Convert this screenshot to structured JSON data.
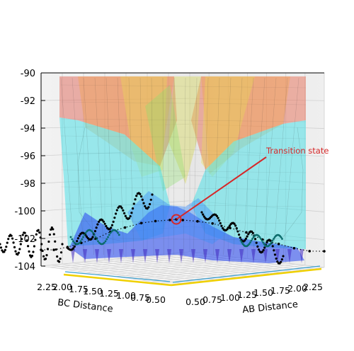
{
  "chart_data": {
    "type": "surface3d",
    "title": "",
    "zlim": [
      -104,
      -90
    ],
    "z_ticks": [
      "-90",
      "-92",
      "-94",
      "-96",
      "-98",
      "-100",
      "-102",
      "-104"
    ],
    "xlabel": "AB Distance",
    "ylabel": "BC Distance",
    "x_ticks": [
      "0.50",
      "0.75",
      "1.00",
      "1.25",
      "1.50",
      "1.75",
      "2.00",
      "2.25"
    ],
    "y_ticks": [
      "0.50",
      "0.75",
      "1.00",
      "1.25",
      "1.50",
      "1.75",
      "2.00",
      "2.25"
    ],
    "colormap": "jet",
    "surface_alpha": 0.45,
    "grid": true,
    "series": [
      {
        "kind": "reaction-path",
        "color": "#000000",
        "points": [
          {
            "ab": 0.5,
            "bc": 2.25,
            "z": -102.8
          },
          {
            "ab": 0.52,
            "bc": 2.1,
            "z": -102.7
          },
          {
            "ab": 0.55,
            "bc": 1.95,
            "z": -102.4
          },
          {
            "ab": 0.58,
            "bc": 1.8,
            "z": -102.0
          },
          {
            "ab": 0.62,
            "bc": 1.65,
            "z": -101.6
          },
          {
            "ab": 0.66,
            "bc": 1.5,
            "z": -101.0
          },
          {
            "ab": 0.7,
            "bc": 1.35,
            "z": -100.6
          },
          {
            "ab": 0.76,
            "bc": 1.2,
            "z": -100.2
          },
          {
            "ab": 0.82,
            "bc": 1.08,
            "z": -100.0
          },
          {
            "ab": 0.9,
            "bc": 0.98,
            "z": -99.9
          },
          {
            "ab": 0.94,
            "bc": 0.94,
            "z": -99.85
          },
          {
            "ab": 0.98,
            "bc": 0.9,
            "z": -99.9
          },
          {
            "ab": 1.08,
            "bc": 0.82,
            "z": -100.0
          },
          {
            "ab": 1.2,
            "bc": 0.76,
            "z": -100.2
          },
          {
            "ab": 1.35,
            "bc": 0.7,
            "z": -100.6
          },
          {
            "ab": 1.5,
            "bc": 0.66,
            "z": -101.0
          },
          {
            "ab": 1.65,
            "bc": 0.62,
            "z": -101.6
          },
          {
            "ab": 1.8,
            "bc": 0.58,
            "z": -102.0
          },
          {
            "ab": 1.95,
            "bc": 0.55,
            "z": -102.4
          },
          {
            "ab": 2.1,
            "bc": 0.52,
            "z": -102.7
          },
          {
            "ab": 2.25,
            "bc": 0.5,
            "z": -102.8
          }
        ]
      }
    ],
    "annotations": [
      {
        "text": "Transition state",
        "color": "#d62728",
        "ab": 0.94,
        "bc": 0.94,
        "z": -99.85
      }
    ]
  }
}
